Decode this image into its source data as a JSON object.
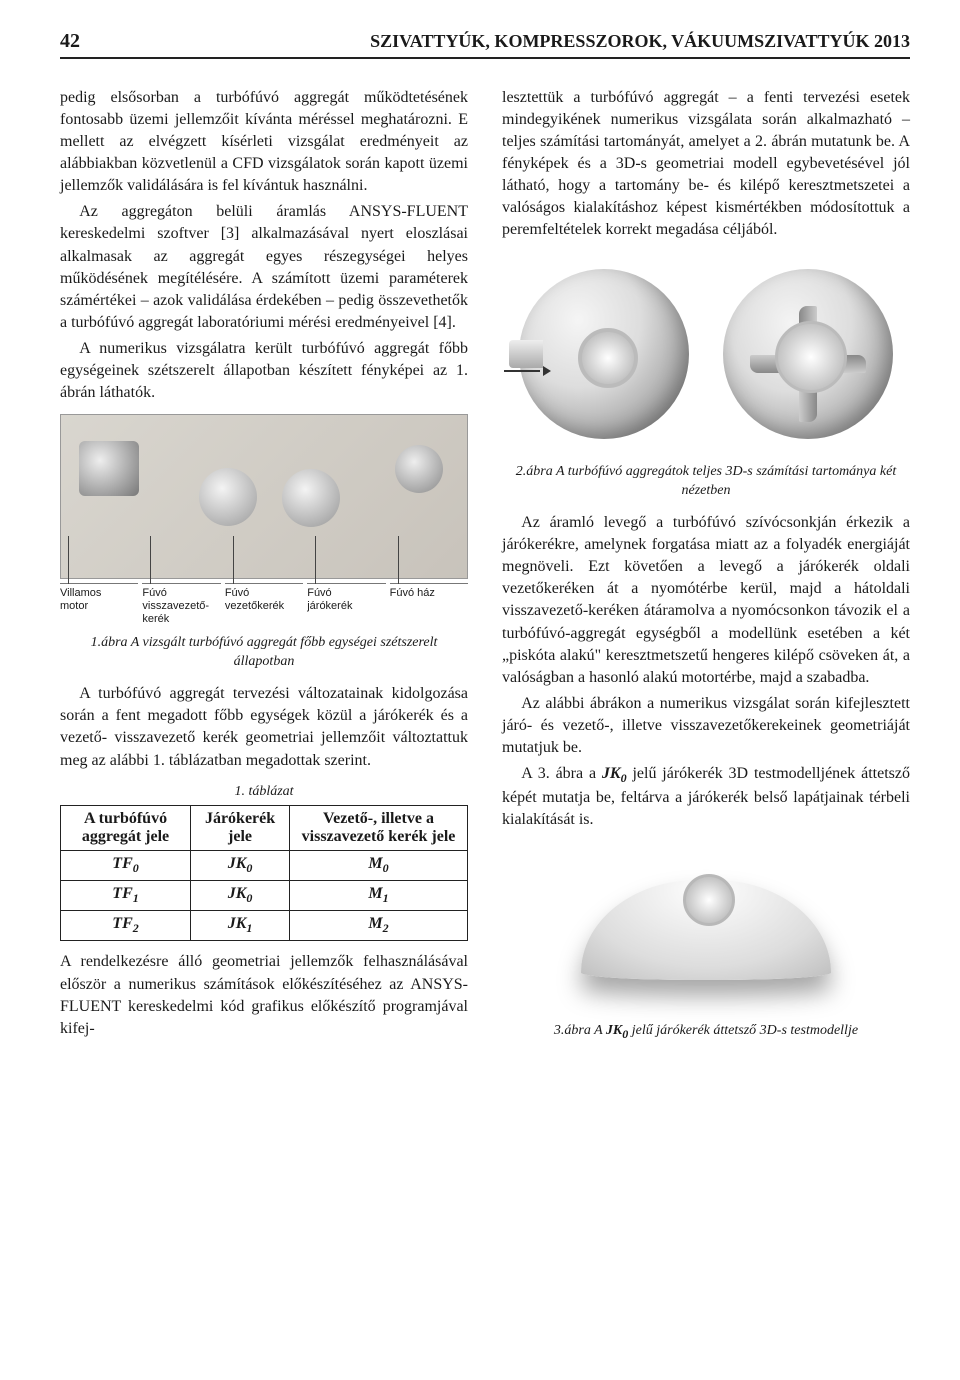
{
  "header": {
    "page_number": "42",
    "running_head": "SZIVATTYÚK, KOMPRESSZOROK, VÁKUUMSZIVATTYÚK 2013"
  },
  "left_col": {
    "p1": "pedig elsősorban a turbófúvó aggregát működtetésének fontosabb üzemi jellemzőit kívánta méréssel meghatározni. E mellett az elvégzett kísérleti vizsgálat eredményeit az alábbiakban közvetlenül a CFD vizsgálatok során kapott üzemi jellemzők validálására is fel kívántuk használni.",
    "p2": "Az aggregáton belüli áramlás ANSYS-FLUENT kereskedelmi szoftver [3] alkalmazásával nyert eloszlásai alkalmasak az aggregát egyes részegységei helyes működésének megítélésére. A számított üzemi paraméterek számértékei – azok validálása érdekében – pedig összevethetők a turbófúvó aggregát laboratóriumi mérési eredményeivel [4].",
    "p3": "A numerikus vizsgálatra került turbófúvó aggregát főbb egységeinek szétszerelt állapotban készített fényképei az 1. ábrán láthatók.",
    "fig1_labels": [
      "Villamos\nmotor",
      "Fúvó\nvisszavezető-\nkerék",
      "Fúvó\nvezetőkerék",
      "Fúvó\njárókerék",
      "Fúvó ház"
    ],
    "fig1_caption": "1.ábra A vizsgált turbófúvó aggregát főbb egységei szétszerelt állapotban",
    "p4": "A turbófúvó aggregát tervezési változatainak kidolgozása során a fent megadott főbb egységek közül a járókerék és a vezető- visszavezető kerék geometriai jellemzőit változtattuk meg az alábbi 1. táblázatban megadottak szerint.",
    "table_caption": "1. táblázat",
    "table": {
      "header": [
        "A turbófúvó aggregát jele",
        "Járókerék jele",
        "Vezető-, illetve a visszavezető kerék jele"
      ],
      "rows": [
        [
          "TF_0",
          "JK_0",
          "M_0"
        ],
        [
          "TF_1",
          "JK_0",
          "M_1"
        ],
        [
          "TF_2",
          "JK_1",
          "M_2"
        ]
      ]
    },
    "p5": "A rendelkezésre álló geometriai jellemzők felhasználásával először a numerikus számítások előkészítéséhez az ANSYS-FLUENT kereskedelmi kód grafikus előkészítő programjával kifej-"
  },
  "right_col": {
    "p1": "lesztettük a turbófúvó aggregát – a fenti tervezési esetek mindegyikének numerikus vizsgálata során alkalmazható – teljes számítási tartományát, amelyet a 2. ábrán mutatunk be. A fényképek és a 3D-s geometriai modell egybevetésével jól látható, hogy a tartomány be- és kilépő keresztmetszetei a valóságos kialakításhoz képest kismértékben módosítottuk a peremfeltételek korrekt megadása céljából.",
    "fig2_caption": "2.ábra A turbófúvó aggregátok teljes 3D-s számítási tartománya két nézetben",
    "p2": "Az áramló levegő a turbófúvó szívócsonkján érkezik a járókerékre, amelynek forgatása miatt az a folyadék energiáját megnöveli. Ezt követően a levegő a járókerék oldali vezetőkeréken át a nyomótérbe kerül, majd a hátoldali visszavezető-keréken átáramolva a nyomócsonkon távozik el a turbófúvó-aggregát egységből a modellünk esetében a két „piskóta alakú\" keresztmetszetű hengeres kilépő csöveken át, a valóságban a hasonló alakú motortérbe, majd a szabadba.",
    "p3": "Az alábbi ábrákon a numerikus vizsgálat során kifejlesztett járó- és vezető-, illetve visszavezetőkerekeinek geometriáját mutatjuk be.",
    "p4": "A 3. ábra a JK_0 jelű járókerék 3D testmodelljének áttetsző képét mutatja be, feltárva a járókerék belső lapátjainak térbeli kialakítását is.",
    "fig3_caption": "3.ábra A JK_0 jelű járókerék áttetsző 3D-s testmodellje"
  }
}
